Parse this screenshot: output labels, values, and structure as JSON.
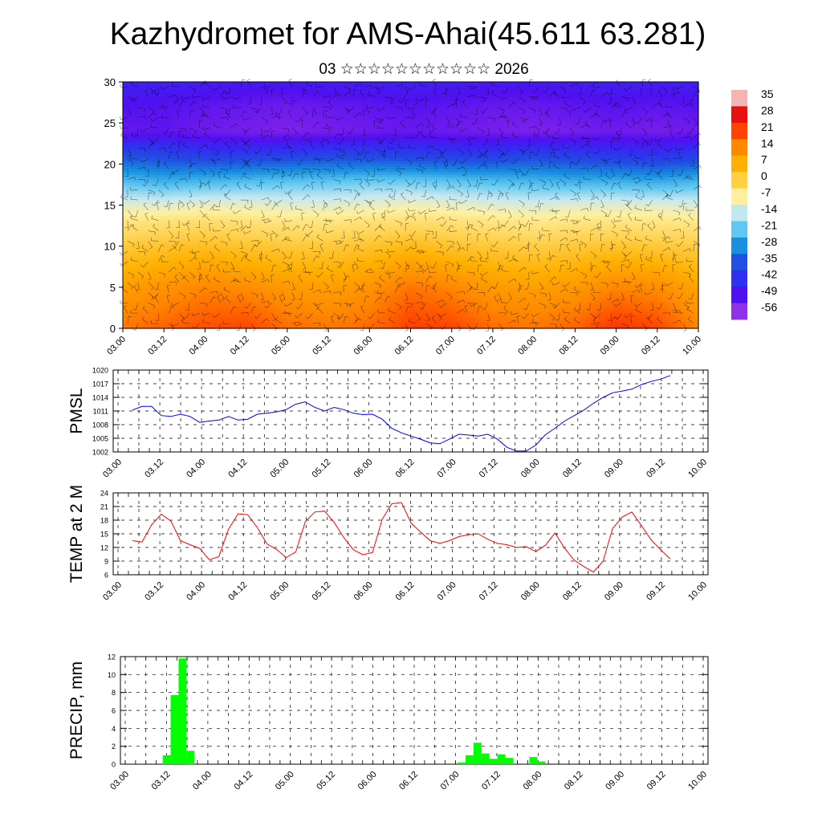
{
  "title": "Kazhydromet for AMS-Ahai(45.611 63.281)",
  "subtitle": "03 ☆☆☆☆☆☆☆☆☆☆☆ 2026",
  "time_labels": [
    "03.00",
    "03.12",
    "04.00",
    "04.12",
    "05.00",
    "05.12",
    "06.00",
    "06.12",
    "07.00",
    "07.12",
    "08.00",
    "08.12",
    "09.00",
    "09.12",
    "10.00"
  ],
  "colors": {
    "pmsl_line": "#0000ff",
    "temp_line": "#ff0000",
    "precip_bar": "#00ff00",
    "grid": "#000000"
  },
  "chart_data": [
    {
      "type": "heatmap",
      "name": "vertical cross-section",
      "xlabel": "",
      "ylabel": "",
      "ylim": [
        0,
        30
      ],
      "yticks": [
        0,
        5,
        10,
        15,
        20,
        25,
        30
      ],
      "colorbar": {
        "labels": [
          "35",
          "28",
          "21",
          "14",
          "7",
          "0",
          "-7",
          "-14",
          "-21",
          "-28",
          "-35",
          "-42",
          "-49",
          "-56"
        ],
        "colors": [
          "#f4b4b4",
          "#e81010",
          "#ff4400",
          "#ff8800",
          "#ffb000",
          "#ffd040",
          "#fff0a0",
          "#c0e8f0",
          "#60c8f0",
          "#1890e0",
          "#2050e0",
          "#3030f0",
          "#5010f0",
          "#9030e8"
        ]
      },
      "levels": [
        {
          "z": 0,
          "t": [
            16,
            18,
            20,
            21,
            17,
            16,
            17,
            22,
            21,
            17,
            16,
            18,
            23,
            21,
            14
          ]
        },
        {
          "z": 5,
          "t": [
            10,
            12,
            14,
            13,
            11,
            10,
            12,
            16,
            14,
            11,
            10,
            11,
            14,
            13,
            9
          ]
        },
        {
          "z": 10,
          "t": [
            2,
            3,
            4,
            3,
            2,
            2,
            3,
            5,
            3,
            2,
            1,
            2,
            3,
            2,
            1
          ]
        },
        {
          "z": 13,
          "t": [
            -5,
            -4,
            -3,
            -4,
            -5,
            -5,
            -4,
            -3,
            -4,
            -5,
            -6,
            -5,
            -5,
            -5,
            -6
          ]
        },
        {
          "z": 15,
          "t": [
            -12,
            -12,
            -11,
            -11,
            -12,
            -12,
            -11,
            -10,
            -11,
            -12,
            -13,
            -12,
            -12,
            -12,
            -13
          ]
        },
        {
          "z": 18,
          "t": [
            -24,
            -26,
            -25,
            -24,
            -23,
            -23,
            -22,
            -22,
            -23,
            -24,
            -25,
            -26,
            -26,
            -27,
            -25
          ]
        },
        {
          "z": 21,
          "t": [
            -38,
            -40,
            -42,
            -42,
            -41,
            -40,
            -40,
            -41,
            -42,
            -42,
            -40,
            -42,
            -43,
            -44,
            -42
          ]
        },
        {
          "z": 24,
          "t": [
            -55,
            -54,
            -56,
            -57,
            -58,
            -57,
            -56,
            -55,
            -56,
            -57,
            -58,
            -57,
            -56,
            -57,
            -56
          ]
        },
        {
          "z": 27,
          "t": [
            -52,
            -53,
            -54,
            -55,
            -56,
            -55,
            -54,
            -53,
            -54,
            -55,
            -55,
            -54,
            -53,
            -54,
            -53
          ]
        },
        {
          "z": 30,
          "t": [
            -48,
            -48,
            -49,
            -50,
            -50,
            -49,
            -49,
            -48,
            -49,
            -50,
            -50,
            -49,
            -48,
            -49,
            -48
          ]
        }
      ]
    },
    {
      "type": "line",
      "ylabel": "PMSL",
      "ylim": [
        1002,
        1020
      ],
      "yticks": [
        1002,
        1005,
        1008,
        1011,
        1014,
        1017,
        1020
      ],
      "series": [
        {
          "values": [
            1011.2,
            1012,
            1012,
            1010,
            1009.8,
            1010.3,
            1009.8,
            1008.5,
            1008.8,
            1009,
            1009.8,
            1009,
            1009.2,
            1010.3,
            1010.5,
            1010.8,
            1011.3,
            1012.5,
            1013,
            1011.8,
            1011,
            1011.8,
            1011.3,
            1010.5,
            1010.2,
            1010.3,
            1009.2,
            1007.2,
            1006.2,
            1005.5,
            1004.8,
            1004,
            1003.8,
            1004.8,
            1005.9,
            1005.7,
            1005.5,
            1005.9,
            1004.8,
            1003,
            1002.2,
            1002.2,
            1003.5,
            1005.8,
            1007.2,
            1008.8,
            1010,
            1011.2,
            1012.7,
            1014,
            1015,
            1015.4,
            1015.8,
            1016.8,
            1017.5,
            1018,
            1018.8
          ]
        }
      ]
    },
    {
      "type": "line",
      "ylabel": "TEMP at 2 M",
      "ylim": [
        6,
        24
      ],
      "yticks": [
        6,
        9,
        12,
        15,
        18,
        21,
        24
      ],
      "series": [
        {
          "values": [
            13.5,
            13.2,
            17,
            19.3,
            17.8,
            13.5,
            12.6,
            11.8,
            9.3,
            10,
            16,
            19.4,
            19.2,
            16.4,
            12.8,
            11.6,
            9.8,
            11,
            17.7,
            19.8,
            20,
            17.5,
            14.2,
            11.5,
            10.4,
            10.9,
            18.2,
            21.6,
            21.9,
            17.4,
            15.4,
            13.5,
            12.9,
            13.5,
            14.4,
            14.8,
            15,
            13.8,
            12.9,
            12.6,
            12,
            12.2,
            11.1,
            12.5,
            15.2,
            11.8,
            9.2,
            7.8,
            6.6,
            9,
            16.2,
            18.7,
            19.8,
            16.8,
            13.7,
            11.5,
            9.5
          ]
        }
      ]
    },
    {
      "type": "bar",
      "ylabel": "PRECIP, mm",
      "ylim": [
        0,
        12
      ],
      "yticks": [
        0,
        2,
        4,
        6,
        8,
        10,
        12
      ],
      "values": [
        0,
        0,
        0,
        0,
        0,
        1,
        7.7,
        11.8,
        1.5,
        0,
        0,
        0,
        0,
        0,
        0,
        0,
        0,
        0,
        0,
        0,
        0,
        0,
        0,
        0,
        0,
        0,
        0,
        0,
        0,
        0,
        0,
        0,
        0,
        0,
        0,
        0,
        0,
        0,
        0,
        0,
        0,
        0,
        0.2,
        1,
        2.4,
        1.2,
        0.6,
        1.1,
        0.7,
        0,
        0,
        0.8,
        0.3,
        0,
        0,
        0,
        0,
        0,
        0,
        0,
        0,
        0,
        0,
        0,
        0,
        0,
        0,
        0,
        0,
        0,
        0,
        0
      ]
    }
  ]
}
